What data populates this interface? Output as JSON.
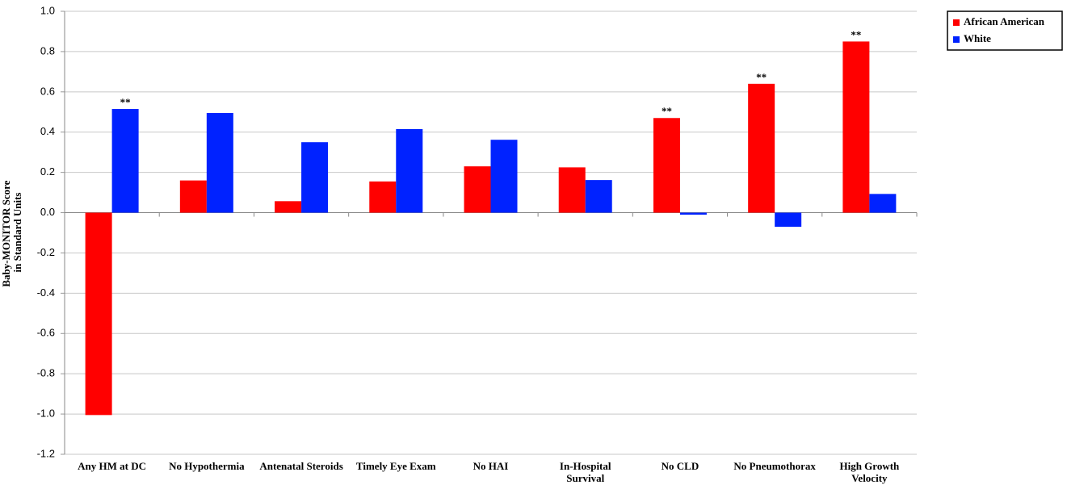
{
  "chart_data": {
    "type": "bar",
    "ylabel": [
      "Baby-MONITOR Score",
      "in Standard Units"
    ],
    "categories": [
      "Any HM at DC",
      "No Hypothermia",
      "Antenatal Steroids",
      "Timely Eye Exam",
      "No HAI",
      "In-Hospital Survival",
      "No CLD",
      "No Pneumothorax",
      "High Growth Velocity"
    ],
    "series": [
      {
        "name": "African American",
        "color": "#ff0000",
        "values": [
          -1.005,
          0.16,
          0.057,
          0.155,
          0.23,
          0.225,
          0.47,
          0.64,
          0.85
        ],
        "annotations": [
          null,
          null,
          null,
          null,
          null,
          null,
          "**",
          "**",
          "**"
        ]
      },
      {
        "name": "White",
        "color": "#0022ff",
        "values": [
          0.515,
          0.495,
          0.35,
          0.415,
          0.362,
          0.162,
          -0.01,
          -0.07,
          0.093
        ],
        "annotations": [
          "**",
          null,
          null,
          null,
          null,
          null,
          null,
          null,
          null
        ]
      }
    ],
    "ylim": [
      -1.2,
      1
    ],
    "yticks": [
      {
        "value": -1.2,
        "label": "-1.2"
      },
      {
        "value": -1,
        "label": "-1.0"
      },
      -0.8,
      -0.6,
      -0.4,
      -0.2,
      {
        "value": 0,
        "label": "0.0"
      },
      0.2,
      0.4,
      0.6,
      0.8,
      {
        "value": 1,
        "label": "1.0"
      }
    ],
    "grid": true,
    "legend": "top-right"
  }
}
